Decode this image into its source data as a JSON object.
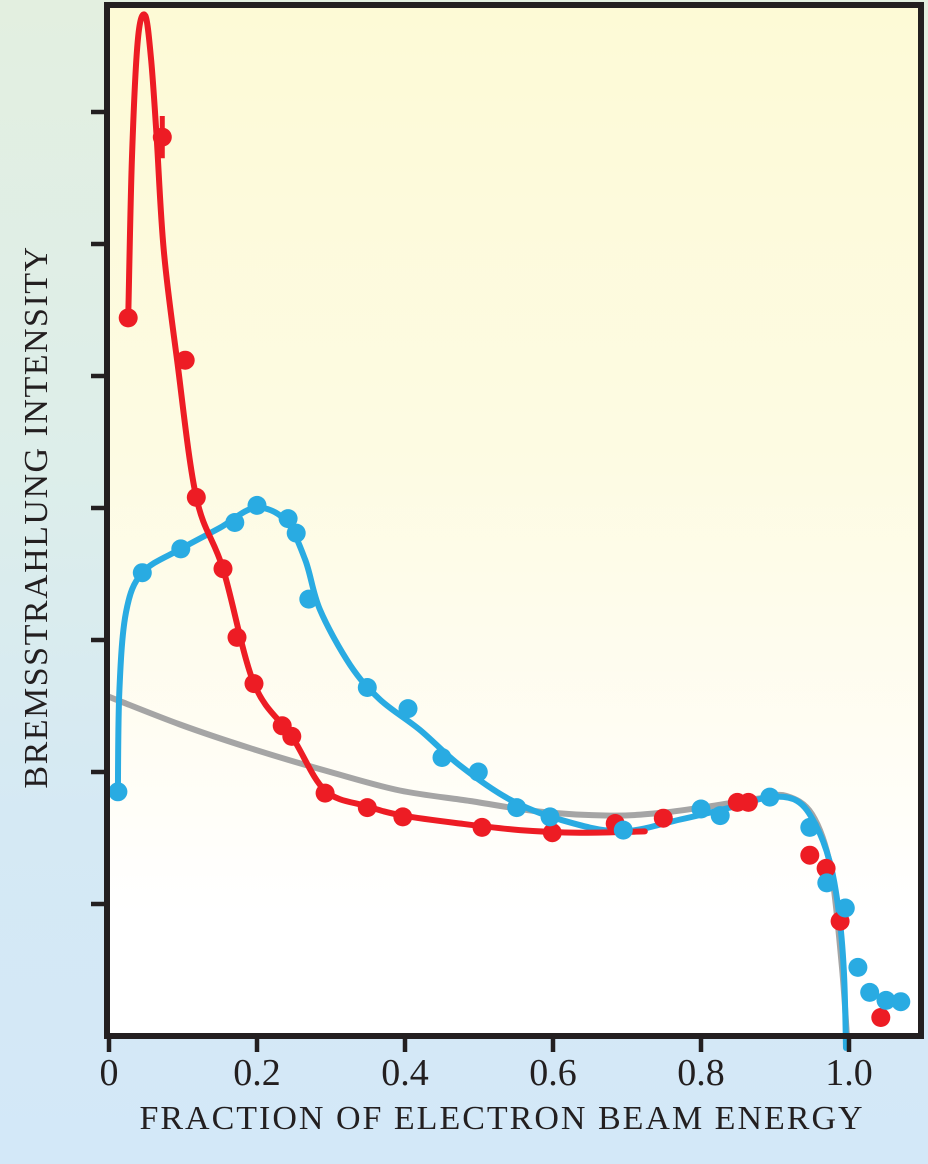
{
  "figure": {
    "outer_background_top": "#e3efe0",
    "outer_background_bottom": "#d3e8f8",
    "plot_background_top": "#fdfad6",
    "plot_background_bottom": "#ffffff",
    "axis_color": "#231f20"
  },
  "chart_data": {
    "type": "scatter",
    "subtype": "scatter points with smooth fitted curves",
    "title": "",
    "xlabel": "FRACTION OF ELECTRON BEAM ENERGY",
    "ylabel": "BREMSSTRAHLUNG INTENSITY",
    "xlim": [
      0,
      1.1
    ],
    "ylim": [
      0,
      7.8
    ],
    "y_units": "arbitrary (axis ticks unlabeled)",
    "grid": false,
    "legend_position": "none",
    "x_ticks": [
      {
        "value": 0.0,
        "label": "0"
      },
      {
        "value": 0.2,
        "label": "0.2"
      },
      {
        "value": 0.4,
        "label": "0.4"
      },
      {
        "value": 0.6,
        "label": "0.6"
      },
      {
        "value": 0.8,
        "label": "0.8"
      },
      {
        "value": 1.0,
        "label": "1.0"
      }
    ],
    "y_ticks": [
      1,
      2,
      3,
      4,
      5,
      6,
      7
    ],
    "series": [
      {
        "name": "gray-reference-curve",
        "color": "#a5a5a5",
        "style": "line",
        "line_width": 6,
        "points": [],
        "curve": [
          [
            0.0,
            2.57
          ],
          [
            0.096,
            2.36
          ],
          [
            0.191,
            2.18
          ],
          [
            0.299,
            2.0
          ],
          [
            0.393,
            1.86
          ],
          [
            0.488,
            1.78
          ],
          [
            0.582,
            1.7
          ],
          [
            0.677,
            1.67
          ],
          [
            0.745,
            1.69
          ],
          [
            0.812,
            1.74
          ],
          [
            0.88,
            1.8
          ],
          [
            0.915,
            1.82
          ],
          [
            0.95,
            1.68
          ],
          [
            0.975,
            1.28
          ],
          [
            0.99,
            0.55
          ],
          [
            0.997,
            0.02
          ]
        ]
      },
      {
        "name": "blue-series",
        "color": "#29abe2",
        "style": "line+markers",
        "line_width": 6,
        "marker_radius": 9.5,
        "points": [
          [
            0.012,
            1.85
          ],
          [
            0.045,
            3.51
          ],
          [
            0.097,
            3.69
          ],
          [
            0.17,
            3.89
          ],
          [
            0.2,
            4.02
          ],
          [
            0.242,
            3.92
          ],
          [
            0.253,
            3.81
          ],
          [
            0.27,
            3.31
          ],
          [
            0.349,
            2.64
          ],
          [
            0.404,
            2.48
          ],
          [
            0.45,
            2.11
          ],
          [
            0.499,
            2.0
          ],
          [
            0.551,
            1.73
          ],
          [
            0.596,
            1.66
          ],
          [
            0.695,
            1.56
          ],
          [
            0.8,
            1.72
          ],
          [
            0.826,
            1.67
          ],
          [
            0.893,
            1.81
          ],
          [
            0.947,
            1.58
          ],
          [
            0.97,
            1.16
          ],
          [
            0.995,
            0.97
          ],
          [
            1.012,
            0.52
          ],
          [
            1.028,
            0.33
          ],
          [
            1.05,
            0.27
          ],
          [
            1.07,
            0.26
          ]
        ],
        "curve": [
          [
            0.012,
            1.85
          ],
          [
            0.014,
            2.62
          ],
          [
            0.023,
            3.21
          ],
          [
            0.045,
            3.51
          ],
          [
            0.097,
            3.69
          ],
          [
            0.15,
            3.85
          ],
          [
            0.197,
            4.0
          ],
          [
            0.238,
            3.91
          ],
          [
            0.265,
            3.61
          ],
          [
            0.285,
            3.23
          ],
          [
            0.326,
            2.81
          ],
          [
            0.366,
            2.55
          ],
          [
            0.42,
            2.32
          ],
          [
            0.474,
            2.05
          ],
          [
            0.542,
            1.79
          ],
          [
            0.609,
            1.64
          ],
          [
            0.691,
            1.55
          ],
          [
            0.772,
            1.64
          ],
          [
            0.839,
            1.73
          ],
          [
            0.893,
            1.81
          ],
          [
            0.93,
            1.78
          ],
          [
            0.954,
            1.61
          ],
          [
            0.974,
            1.32
          ],
          [
            0.986,
            0.95
          ],
          [
            0.993,
            0.5
          ],
          [
            0.996,
            -0.09
          ]
        ]
      },
      {
        "name": "red-series",
        "color": "#ed1c24",
        "style": "line+markers",
        "line_width": 6,
        "marker_radius": 9.5,
        "points": [
          [
            0.026,
            5.44
          ],
          [
            0.072,
            6.81
          ],
          [
            0.103,
            5.12
          ],
          [
            0.118,
            4.08
          ],
          [
            0.154,
            3.54
          ],
          [
            0.173,
            3.02
          ],
          [
            0.196,
            2.67
          ],
          [
            0.234,
            2.35
          ],
          [
            0.247,
            2.27
          ],
          [
            0.292,
            1.84
          ],
          [
            0.349,
            1.73
          ],
          [
            0.397,
            1.66
          ],
          [
            0.504,
            1.58
          ],
          [
            0.599,
            1.54
          ],
          [
            0.684,
            1.61
          ],
          [
            0.749,
            1.65
          ],
          [
            0.849,
            1.77
          ],
          [
            0.864,
            1.77
          ],
          [
            0.947,
            1.37
          ],
          [
            0.969,
            1.27
          ],
          [
            0.988,
            0.87
          ],
          [
            1.043,
            0.14
          ]
        ],
        "curve": [
          [
            0.026,
            5.44
          ],
          [
            0.031,
            6.64
          ],
          [
            0.039,
            7.55
          ],
          [
            0.049,
            7.73
          ],
          [
            0.057,
            7.39
          ],
          [
            0.064,
            6.84
          ],
          [
            0.074,
            5.95
          ],
          [
            0.092,
            5.12
          ],
          [
            0.118,
            4.08
          ],
          [
            0.154,
            3.54
          ],
          [
            0.196,
            2.67
          ],
          [
            0.247,
            2.27
          ],
          [
            0.292,
            1.86
          ],
          [
            0.349,
            1.74
          ],
          [
            0.397,
            1.67
          ],
          [
            0.474,
            1.61
          ],
          [
            0.555,
            1.56
          ],
          [
            0.636,
            1.54
          ],
          [
            0.724,
            1.55
          ]
        ],
        "error_bars": [
          {
            "point_index": 1,
            "y_error": 0.16
          }
        ]
      }
    ]
  }
}
